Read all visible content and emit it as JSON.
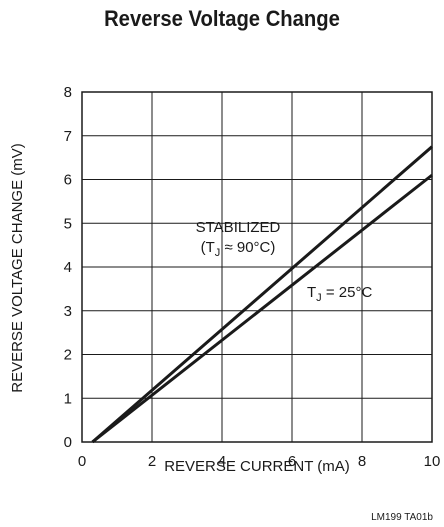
{
  "chart_data": {
    "type": "line",
    "title": "Reverse Voltage Change",
    "xlabel": "REVERSE CURRENT (mA)",
    "ylabel": "REVERSE VOLTAGE CHANGE (mV)",
    "xlim": [
      0,
      10
    ],
    "ylim": [
      0,
      8
    ],
    "xticks": [
      "0",
      "2",
      "4",
      "6",
      "8",
      "10"
    ],
    "yticks": [
      "0",
      "1",
      "2",
      "3",
      "4",
      "5",
      "6",
      "7",
      "8"
    ],
    "grid": true,
    "series": [
      {
        "name": "STABILIZED (TJ ≈ 90°C)",
        "x": [
          0.3,
          10
        ],
        "y": [
          0,
          6.75
        ]
      },
      {
        "name": "TJ = 25°C",
        "x": [
          0.3,
          10
        ],
        "y": [
          0,
          6.1
        ]
      }
    ],
    "annotations": {
      "stabilized_line1": "STABILIZED",
      "stabilized_line2_prefix": "(T",
      "stabilized_sub": "J",
      "stabilized_line2_suffix": " ≈ 90°C)",
      "tj25_prefix": "T",
      "tj25_sub": "J",
      "tj25_suffix": " = 25°C"
    },
    "footnote": "LM199 TA01b"
  }
}
